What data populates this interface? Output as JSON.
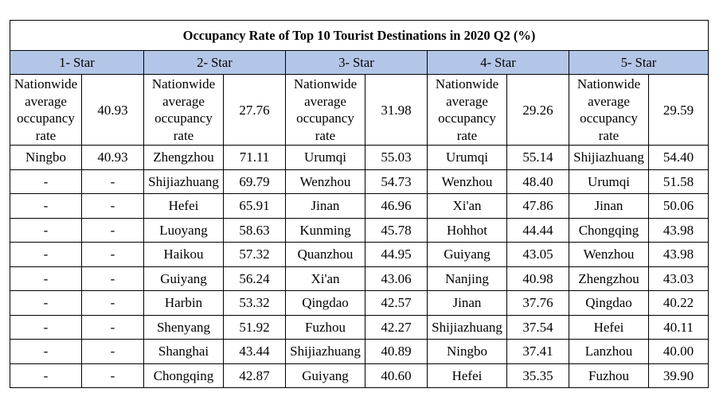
{
  "chart_data": {
    "type": "table",
    "title": "Occupancy Rate of Top 10 Tourist Destinations in 2020 Q2 (%)",
    "average_label": "Nationwide average occupancy rate",
    "classes": [
      {
        "name": "1- Star",
        "average": "40.93",
        "rows": [
          {
            "city": "Ningbo",
            "rate": "40.93"
          },
          {
            "city": "-",
            "rate": "-"
          },
          {
            "city": "-",
            "rate": "-"
          },
          {
            "city": "-",
            "rate": "-"
          },
          {
            "city": "-",
            "rate": "-"
          },
          {
            "city": "-",
            "rate": "-"
          },
          {
            "city": "-",
            "rate": "-"
          },
          {
            "city": "-",
            "rate": "-"
          },
          {
            "city": "-",
            "rate": "-"
          },
          {
            "city": "-",
            "rate": "-"
          }
        ]
      },
      {
        "name": "2- Star",
        "average": "27.76",
        "rows": [
          {
            "city": "Zhengzhou",
            "rate": "71.11"
          },
          {
            "city": "Shijiazhuang",
            "rate": "69.79"
          },
          {
            "city": "Hefei",
            "rate": "65.91"
          },
          {
            "city": "Luoyang",
            "rate": "58.63"
          },
          {
            "city": "Haikou",
            "rate": "57.32"
          },
          {
            "city": "Guiyang",
            "rate": "56.24"
          },
          {
            "city": "Harbin",
            "rate": "53.32"
          },
          {
            "city": "Shenyang",
            "rate": "51.92"
          },
          {
            "city": "Shanghai",
            "rate": "43.44"
          },
          {
            "city": "Chongqing",
            "rate": "42.87"
          }
        ]
      },
      {
        "name": "3- Star",
        "average": "31.98",
        "rows": [
          {
            "city": "Urumqi",
            "rate": "55.03"
          },
          {
            "city": "Wenzhou",
            "rate": "54.73"
          },
          {
            "city": "Jinan",
            "rate": "46.96"
          },
          {
            "city": "Kunming",
            "rate": "45.78"
          },
          {
            "city": "Quanzhou",
            "rate": "44.95"
          },
          {
            "city": "Xi'an",
            "rate": "43.06"
          },
          {
            "city": "Qingdao",
            "rate": "42.57"
          },
          {
            "city": "Fuzhou",
            "rate": "42.27"
          },
          {
            "city": "Shijiazhuang",
            "rate": "40.89"
          },
          {
            "city": "Guiyang",
            "rate": "40.60"
          }
        ]
      },
      {
        "name": "4- Star",
        "average": "29.26",
        "rows": [
          {
            "city": "Urumqi",
            "rate": "55.14"
          },
          {
            "city": "Wenzhou",
            "rate": "48.40"
          },
          {
            "city": "Xi'an",
            "rate": "47.86"
          },
          {
            "city": "Hohhot",
            "rate": "44.44"
          },
          {
            "city": "Guiyang",
            "rate": "43.05"
          },
          {
            "city": "Nanjing",
            "rate": "40.98"
          },
          {
            "city": "Jinan",
            "rate": "37.76"
          },
          {
            "city": "Shijiazhuang",
            "rate": "37.54"
          },
          {
            "city": "Ningbo",
            "rate": "37.41"
          },
          {
            "city": "Hefei",
            "rate": "35.35"
          }
        ]
      },
      {
        "name": "5- Star",
        "average": "29.59",
        "rows": [
          {
            "city": "Shijiazhuang",
            "rate": "54.40"
          },
          {
            "city": "Urumqi",
            "rate": "51.58"
          },
          {
            "city": "Jinan",
            "rate": "50.06"
          },
          {
            "city": "Chongqing",
            "rate": "43.98"
          },
          {
            "city": "Wenzhou",
            "rate": "43.98"
          },
          {
            "city": "Zhengzhou",
            "rate": "43.03"
          },
          {
            "city": "Qingdao",
            "rate": "40.22"
          },
          {
            "city": "Hefei",
            "rate": "40.11"
          },
          {
            "city": "Lanzhou",
            "rate": "40.00"
          },
          {
            "city": "Fuzhou",
            "rate": "39.90"
          }
        ]
      }
    ],
    "colors": {
      "header_fill": "#b4c6e7",
      "border": "#000000",
      "background": "#ffffff"
    }
  }
}
